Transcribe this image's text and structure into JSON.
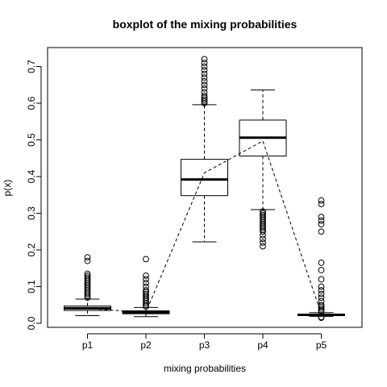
{
  "chart_data": {
    "type": "boxplot",
    "title": "boxplot of the mixing probabilities",
    "xlabel": "mixing probabilities",
    "ylabel": "p(x)",
    "ylim": [
      0,
      0.74
    ],
    "yticks": [
      "0.0",
      "0.1",
      "0.2",
      "0.3",
      "0.4",
      "0.5",
      "0.6",
      "0.7"
    ],
    "categories": [
      "p1",
      "p2",
      "p3",
      "p4",
      "p5"
    ],
    "grid": false,
    "boxes": [
      {
        "name": "p1",
        "whisker_low": 0.021,
        "q1": 0.035,
        "median": 0.041,
        "q3": 0.047,
        "whisker_high": 0.066,
        "outliers": [
          0.07,
          0.075,
          0.08,
          0.085,
          0.09,
          0.095,
          0.1,
          0.105,
          0.11,
          0.115,
          0.12,
          0.125,
          0.13,
          0.135,
          0.17,
          0.18
        ]
      },
      {
        "name": "p2",
        "whisker_low": 0.018,
        "q1": 0.026,
        "median": 0.03,
        "q3": 0.034,
        "whisker_high": 0.043,
        "outliers": [
          0.046,
          0.05,
          0.055,
          0.06,
          0.065,
          0.07,
          0.075,
          0.08,
          0.085,
          0.09,
          0.1,
          0.11,
          0.12,
          0.13,
          0.175
        ]
      },
      {
        "name": "p3",
        "whisker_low": 0.222,
        "q1": 0.348,
        "median": 0.392,
        "q3": 0.447,
        "whisker_high": 0.596,
        "outliers": [
          0.6,
          0.605,
          0.61,
          0.615,
          0.62,
          0.63,
          0.64,
          0.65,
          0.66,
          0.67,
          0.68,
          0.69,
          0.7,
          0.71,
          0.72
        ]
      },
      {
        "name": "p4",
        "whisker_low": 0.31,
        "q1": 0.456,
        "median": 0.506,
        "q3": 0.554,
        "whisker_high": 0.636,
        "outliers": [
          0.305,
          0.3,
          0.295,
          0.29,
          0.285,
          0.28,
          0.275,
          0.27,
          0.265,
          0.26,
          0.255,
          0.25,
          0.24,
          0.23,
          0.22,
          0.21
        ]
      },
      {
        "name": "p5",
        "whisker_low": 0.019,
        "q1": 0.021,
        "median": 0.023,
        "q3": 0.025,
        "whisker_high": 0.029,
        "outliers": [
          0.015,
          0.017,
          0.032,
          0.035,
          0.04,
          0.045,
          0.05,
          0.06,
          0.07,
          0.08,
          0.09,
          0.1,
          0.12,
          0.145,
          0.165,
          0.25,
          0.27,
          0.28,
          0.29,
          0.325,
          0.335
        ]
      }
    ],
    "mean_line": {
      "style": "dashed",
      "values": [
        0.04,
        0.03,
        0.41,
        0.497,
        0.025
      ]
    }
  }
}
